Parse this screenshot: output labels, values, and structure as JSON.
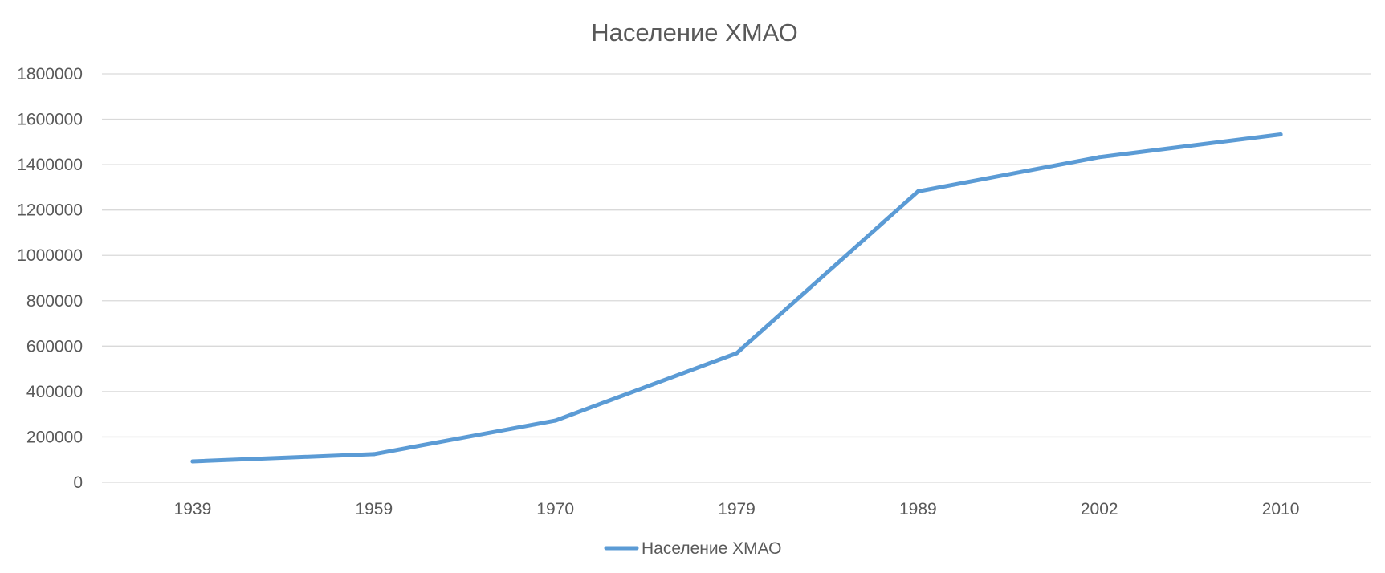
{
  "chart_data": {
    "type": "line",
    "title": "Население ХМАО",
    "xlabel": "",
    "ylabel": "",
    "categories": [
      "1939",
      "1959",
      "1970",
      "1979",
      "1989",
      "2002",
      "2010"
    ],
    "series": [
      {
        "name": "Население ХМАО",
        "values": [
          92000,
          124000,
          272000,
          569000,
          1282000,
          1433000,
          1533000
        ],
        "color": "#5b9bd5"
      }
    ],
    "ylim": [
      0,
      1800000
    ],
    "yticks": [
      "0",
      "200000",
      "400000",
      "600000",
      "800000",
      "1000000",
      "1200000",
      "1400000",
      "1600000",
      "1800000"
    ],
    "grid": true,
    "legend": "bottom"
  }
}
